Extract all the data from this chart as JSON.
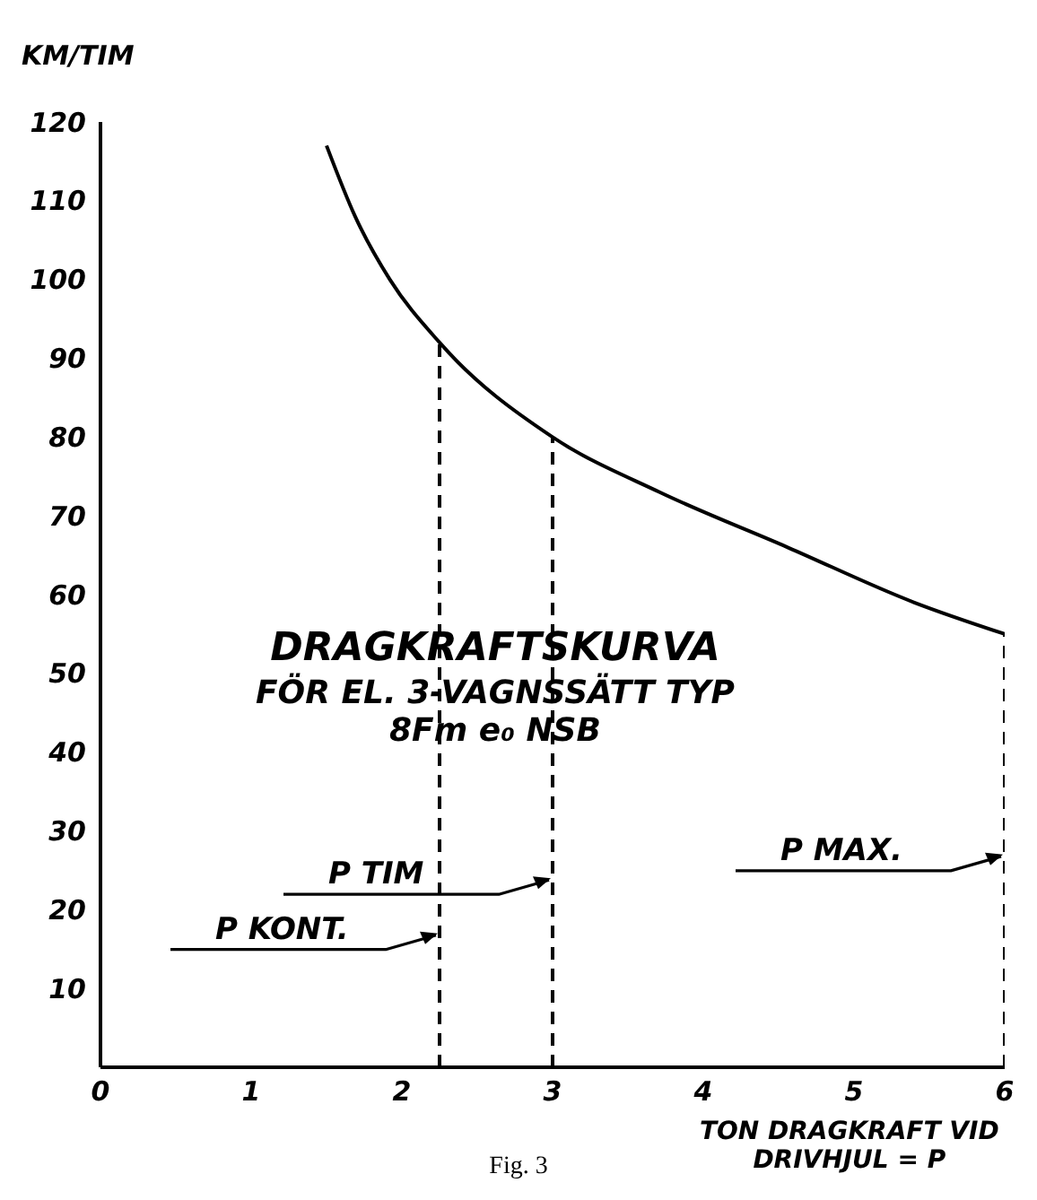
{
  "chart_data": {
    "type": "line",
    "title": "DRAGKRAFTSKURVA",
    "subtitle": "FÖR EL. 3-VAGNSSÄTT TYP 8Fm e₀ NSB",
    "xlabel": "TON DRAGKRAFT VID DRIVHJUL = P",
    "ylabel": "KM/TIM",
    "xlim": [
      0,
      6
    ],
    "xticks": [
      0,
      1,
      2,
      3,
      4,
      5,
      6
    ],
    "ylim": [
      0,
      120
    ],
    "yticks": [
      10,
      20,
      30,
      40,
      50,
      60,
      70,
      80,
      90,
      100,
      110,
      120
    ],
    "marker": "none",
    "series": [
      {
        "color": "#000000",
        "line_style": "solid",
        "x": [
          1.5,
          1.69,
          1.92,
          2.25,
          3,
          3.71,
          4.56,
          5.4,
          6
        ],
        "values": [
          117,
          108,
          100,
          92,
          80,
          73,
          66,
          59,
          55
        ]
      },
      {
        "color": "#000000",
        "line_style": "dashed",
        "x": [
          2.25,
          2.25
        ],
        "values": [
          0,
          92
        ]
      },
      {
        "color": "#000000",
        "line_style": "dashed",
        "x": [
          3,
          3
        ],
        "values": [
          0,
          80
        ]
      },
      {
        "color": "#000000",
        "line_style": "dashed",
        "x": [
          6,
          6
        ],
        "values": [
          0,
          55
        ]
      }
    ],
    "annotations": [
      {
        "text": "P KONT.",
        "x": 2.25,
        "y": 17
      },
      {
        "text": "P TIM",
        "x": 3,
        "y": 24
      },
      {
        "text": "P MAX.",
        "x": 6,
        "y": 27
      },
      "Fig. 3"
    ]
  }
}
